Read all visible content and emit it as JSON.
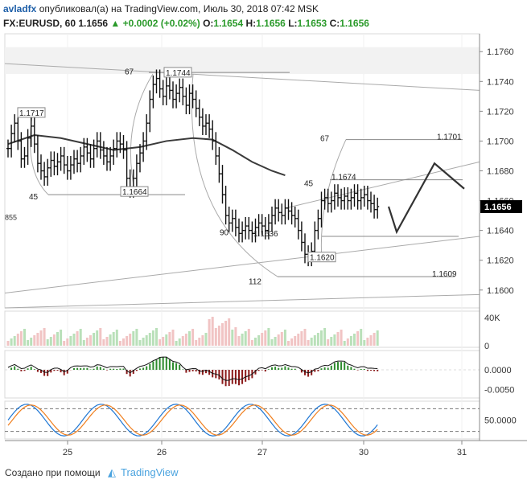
{
  "header": {
    "user": "avladfx",
    "published": "опубликовал(а) на TradingView.com, Июль 30, 2018 07:42 MSK",
    "symbol": "FX:EURUSD, 60",
    "last": "1.1656",
    "change": "+0.0002 (+0.02%)",
    "o_label": "O:",
    "o_val": "1.1654",
    "h_label": "H:",
    "h_val": "1.1656",
    "l_label": "L:",
    "l_val": "1.1653",
    "c_label": "C:",
    "c_val": "1.1656"
  },
  "footer": {
    "created_with": "Создано при помощи",
    "brand": "TradingView"
  },
  "colors": {
    "up": "#2e8b2e",
    "down": "#8b1a1a",
    "price_tag": "#000000",
    "macd_line": "#111111",
    "stoch_k": "#1f77d4",
    "stoch_d": "#f07f1e"
  },
  "chart_data": {
    "type": "candlestick",
    "price_axis": {
      "ticks": [
        "1.1760",
        "1.1740",
        "1.1720",
        "1.1700",
        "1.1680",
        "1.1660",
        "1.1640",
        "1.1620",
        "1.1600"
      ],
      "range": [
        1.1588,
        1.1772
      ],
      "current_label": "1.1656"
    },
    "time_axis": {
      "ticks": [
        "25",
        "26",
        "27",
        "30",
        "31"
      ]
    },
    "closes": [
      1.1695,
      1.1705,
      1.1712,
      1.17,
      1.1688,
      1.169,
      1.1702,
      1.171,
      1.1698,
      1.1685,
      1.168,
      1.1676,
      1.1682,
      1.1687,
      1.1683,
      1.1686,
      1.169,
      1.1684,
      1.168,
      1.1684,
      1.1688,
      1.1685,
      1.169,
      1.1696,
      1.1692,
      1.1688,
      1.1695,
      1.17,
      1.1694,
      1.169,
      1.1686,
      1.169,
      1.1695,
      1.17,
      1.1698,
      1.1694,
      1.1675,
      1.1668,
      1.1675,
      1.1685,
      1.1692,
      1.17,
      1.1712,
      1.1728,
      1.1738,
      1.1742,
      1.1735,
      1.173,
      1.1737,
      1.1734,
      1.1728,
      1.1732,
      1.1736,
      1.173,
      1.1724,
      1.1732,
      1.1728,
      1.1722,
      1.1716,
      1.171,
      1.1712,
      1.1708,
      1.17,
      1.169,
      1.1678,
      1.1664,
      1.165,
      1.1645,
      1.1648,
      1.1642,
      1.1638,
      1.164,
      1.1643,
      1.164,
      1.1638,
      1.1642,
      1.1645,
      1.1643,
      1.164,
      1.1645,
      1.165,
      1.1655,
      1.1652,
      1.165,
      1.1655,
      1.1653,
      1.165,
      1.1648,
      1.164,
      1.1632,
      1.1624,
      1.1622,
      1.1626,
      1.164,
      1.1648,
      1.166,
      1.1662,
      1.1658,
      1.166,
      1.1665,
      1.1662,
      1.166,
      1.1663,
      1.166,
      1.1662,
      1.1665,
      1.166,
      1.1662,
      1.1664,
      1.166,
      1.1658,
      1.1654,
      1.1656
    ],
    "moving_average": [
      [
        0,
        1.1698
      ],
      [
        8,
        1.1704
      ],
      [
        16,
        1.1702
      ],
      [
        24,
        1.1698
      ],
      [
        32,
        1.1694
      ],
      [
        40,
        1.1696
      ],
      [
        48,
        1.17
      ],
      [
        56,
        1.1702
      ],
      [
        62,
        1.1701
      ],
      [
        68,
        1.1694
      ],
      [
        74,
        1.1686
      ],
      [
        80,
        1.168
      ],
      [
        84,
        1.1677
      ]
    ],
    "projection": [
      [
        1.1656
      ],
      [
        1.1639
      ],
      [
        1.1685
      ],
      [
        1.1668
      ]
    ],
    "annotations": [
      {
        "type": "price_label",
        "text": "1.1717"
      },
      {
        "type": "price_label",
        "text": "1.1744"
      },
      {
        "type": "price_label",
        "text": "1.1664"
      },
      {
        "type": "price_label",
        "text": "1.1636"
      },
      {
        "type": "price_label",
        "text": "1.1620"
      },
      {
        "type": "price_label",
        "text": "1.1674"
      },
      {
        "type": "price_label",
        "text": "1.1701"
      },
      {
        "type": "price_label",
        "text": "1.1609"
      },
      {
        "type": "count",
        "text": "67"
      },
      {
        "type": "count",
        "text": "45"
      },
      {
        "type": "count",
        "text": "90"
      },
      {
        "type": "count",
        "text": "112"
      },
      {
        "type": "count",
        "text": "67"
      },
      {
        "type": "count",
        "text": "45"
      }
    ],
    "volume_axis": {
      "ticks": [
        "40K",
        "0"
      ]
    },
    "macd_axis": {
      "ticks": [
        "0.0000",
        "-0.0050"
      ]
    },
    "stoch_axis": {
      "ticks": [
        "50.0000"
      ]
    },
    "left_edge_label": "855"
  }
}
